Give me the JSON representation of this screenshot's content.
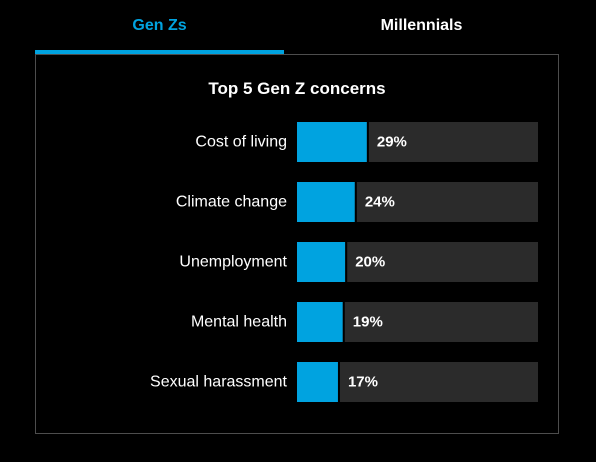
{
  "tabs": [
    {
      "label": "Gen Zs",
      "active": true
    },
    {
      "label": "Millennials",
      "active": false
    }
  ],
  "colors": {
    "accent": "#00a3e0",
    "track": "#2b2b2b",
    "text": "#ffffff",
    "background": "#000000"
  },
  "chart_data": {
    "type": "bar",
    "title": "Top 5 Gen Z concerns",
    "categories": [
      "Cost of living",
      "Climate change",
      "Unemployment",
      "Mental health",
      "Sexual harassment"
    ],
    "values": [
      29,
      24,
      20,
      19,
      17
    ],
    "value_labels": [
      "29%",
      "24%",
      "20%",
      "19%",
      "17%"
    ],
    "xlim": [
      0,
      100
    ],
    "orientation": "horizontal",
    "grid": false,
    "legend": "none"
  }
}
